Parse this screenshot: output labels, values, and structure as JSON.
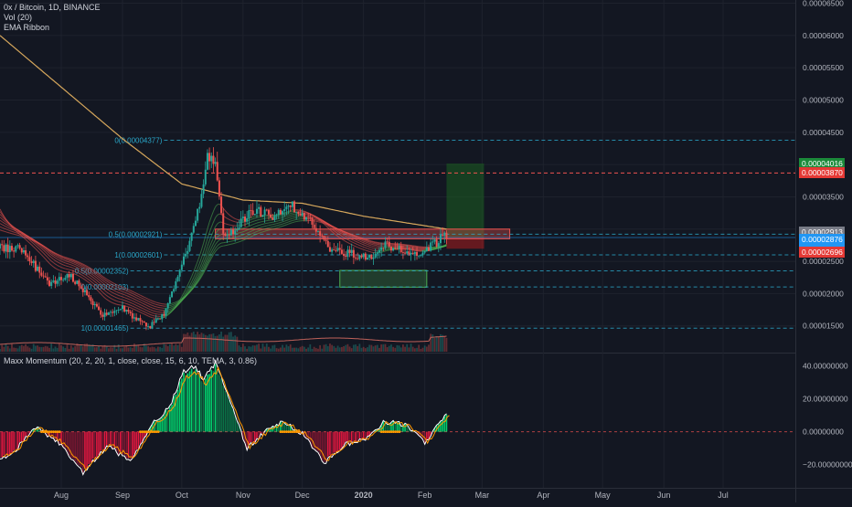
{
  "legend": {
    "symbol": "0x / Bitcoin, 1D, BINANCE",
    "volume": "Vol (20)",
    "ribbon": "EMA Ribbon",
    "momentum": "Maxx Momentum (20, 2, 20, 1, close, close, 15, 6, 10, TEMA, 3, 0.86)"
  },
  "colors": {
    "background": "#131722",
    "up": "#26a69a",
    "down": "#ef5350",
    "fib": "#2aa7c9",
    "ema200": "#d6a75c",
    "target_zone": "#1b5e20",
    "stop_zone": "#b71c1c",
    "support_box": "#4caf50"
  },
  "price_tags": {
    "target": "0.00004016",
    "resistance": "0.00003870",
    "current": "0.00002913",
    "line": "0.00002876",
    "countdown": "12:57:34",
    "stop": "0.00002696"
  },
  "chart_data": [
    {
      "type": "candlestick",
      "title": "0x / Bitcoin, 1D, BINANCE",
      "x_axis_ticks": [
        "Aug",
        "Sep",
        "Oct",
        "Nov",
        "Dec",
        "2020",
        "Feb",
        "Mar",
        "Apr",
        "May",
        "Jun",
        "Jul"
      ],
      "y_axis_ticks": [
        "0.00006500",
        "0.00006000",
        "0.00005500",
        "0.00005000",
        "0.00004500",
        "0.00004000",
        "0.00003500",
        "0.00003000",
        "0.00002500",
        "0.00002000",
        "0.00001500"
      ],
      "ylim": [
        1.1e-05,
        6.55e-05
      ],
      "price_path": [
        {
          "date": "2019-07-10",
          "close": 2.7e-05
        },
        {
          "date": "2019-07-18",
          "close": 2.45e-05
        },
        {
          "date": "2019-07-26",
          "close": 2.15e-05
        },
        {
          "date": "2019-08-05",
          "close": 2.3e-05
        },
        {
          "date": "2019-08-15",
          "close": 1.95e-05
        },
        {
          "date": "2019-08-22",
          "close": 1.65e-05
        },
        {
          "date": "2019-09-01",
          "close": 1.78e-05
        },
        {
          "date": "2019-09-08",
          "close": 1.6e-05
        },
        {
          "date": "2019-09-15",
          "close": 1.5e-05
        },
        {
          "date": "2019-09-22",
          "close": 1.7e-05
        },
        {
          "date": "2019-09-28",
          "close": 2.2e-05
        },
        {
          "date": "2019-10-05",
          "close": 2.8e-05
        },
        {
          "date": "2019-10-10",
          "close": 3.4e-05
        },
        {
          "date": "2019-10-14",
          "close": 4.1e-05
        },
        {
          "date": "2019-10-18",
          "close": 4e-05
        },
        {
          "date": "2019-10-22",
          "close": 2.9e-05
        },
        {
          "date": "2019-10-28",
          "close": 3e-05
        },
        {
          "date": "2019-11-05",
          "close": 3.3e-05
        },
        {
          "date": "2019-11-15",
          "close": 3.2e-05
        },
        {
          "date": "2019-11-25",
          "close": 3.4e-05
        },
        {
          "date": "2019-12-05",
          "close": 3.1e-05
        },
        {
          "date": "2019-12-15",
          "close": 2.7e-05
        },
        {
          "date": "2019-12-25",
          "close": 2.62e-05
        },
        {
          "date": "2020-01-05",
          "close": 2.55e-05
        },
        {
          "date": "2020-01-12",
          "close": 2.75e-05
        },
        {
          "date": "2020-01-20",
          "close": 2.7e-05
        },
        {
          "date": "2020-01-28",
          "close": 2.6e-05
        },
        {
          "date": "2020-02-05",
          "close": 2.75e-05
        },
        {
          "date": "2020-02-12",
          "close": 2.91e-05
        }
      ],
      "ema200_path": [
        {
          "date": "2019-07-01",
          "value": 6e-05
        },
        {
          "date": "2019-08-01",
          "value": 5.2e-05
        },
        {
          "date": "2019-09-01",
          "value": 4.4e-05
        },
        {
          "date": "2019-10-01",
          "value": 3.7e-05
        },
        {
          "date": "2019-11-01",
          "value": 3.45e-05
        },
        {
          "date": "2019-12-01",
          "value": 3.4e-05
        },
        {
          "date": "2020-01-01",
          "value": 3.2e-05
        },
        {
          "date": "2020-02-12",
          "value": 3e-05
        }
      ],
      "fib_levels": [
        {
          "label": "0(0.00004377)",
          "value": 4.377e-05
        },
        {
          "label": "0.5(0.00002921)",
          "value": 2.921e-05
        },
        {
          "label": "1(0.00002601)",
          "value": 2.601e-05
        },
        {
          "label": "0.5(0.00002352)",
          "value": 2.352e-05
        },
        {
          "label": "0(0.00002103)",
          "value": 2.103e-05
        },
        {
          "label": "1(0.00001465)",
          "value": 1.465e-05
        }
      ],
      "resistance_level": 3.87e-05,
      "position": {
        "entry": 2.87e-05,
        "target": 4.016e-05,
        "stop": 2.696e-05,
        "from": "2020-02-12",
        "to": "2020-03-02"
      },
      "zone": {
        "low": 2.85e-05,
        "high": 3e-05,
        "from": "2019-10-18",
        "to": "2020-03-15"
      },
      "support_box": {
        "low": 2.1e-05,
        "high": 2.36e-05,
        "from": "2019-12-20",
        "to": "2020-02-02"
      }
    },
    {
      "type": "histogram",
      "title": "Maxx Momentum (20, 2, 20, 1, close, close, 15, 6, 10, TEMA, 3, 0.86)",
      "y_axis_ticks": [
        "40.00000000",
        "20.00000000",
        "0.00000000",
        "−20.00000000"
      ],
      "ylim": [
        -33,
        47
      ],
      "momentum": [
        {
          "date": "2019-07-05",
          "value": -15
        },
        {
          "date": "2019-07-20",
          "value": 3
        },
        {
          "date": "2019-08-01",
          "value": -8
        },
        {
          "date": "2019-08-12",
          "value": -24
        },
        {
          "date": "2019-08-25",
          "value": -8
        },
        {
          "date": "2019-09-05",
          "value": -18
        },
        {
          "date": "2019-09-15",
          "value": 3
        },
        {
          "date": "2019-09-25",
          "value": 15
        },
        {
          "date": "2019-10-02",
          "value": 35
        },
        {
          "date": "2019-10-08",
          "value": 38
        },
        {
          "date": "2019-10-12",
          "value": 30
        },
        {
          "date": "2019-10-18",
          "value": 40
        },
        {
          "date": "2019-10-25",
          "value": 20
        },
        {
          "date": "2019-11-03",
          "value": -10
        },
        {
          "date": "2019-11-12",
          "value": 0
        },
        {
          "date": "2019-11-22",
          "value": 6
        },
        {
          "date": "2019-12-03",
          "value": -3
        },
        {
          "date": "2019-12-12",
          "value": -18
        },
        {
          "date": "2019-12-22",
          "value": -8
        },
        {
          "date": "2020-01-02",
          "value": -4
        },
        {
          "date": "2020-01-12",
          "value": 6
        },
        {
          "date": "2020-01-22",
          "value": 4
        },
        {
          "date": "2020-02-01",
          "value": -6
        },
        {
          "date": "2020-02-12",
          "value": 10
        }
      ]
    }
  ]
}
